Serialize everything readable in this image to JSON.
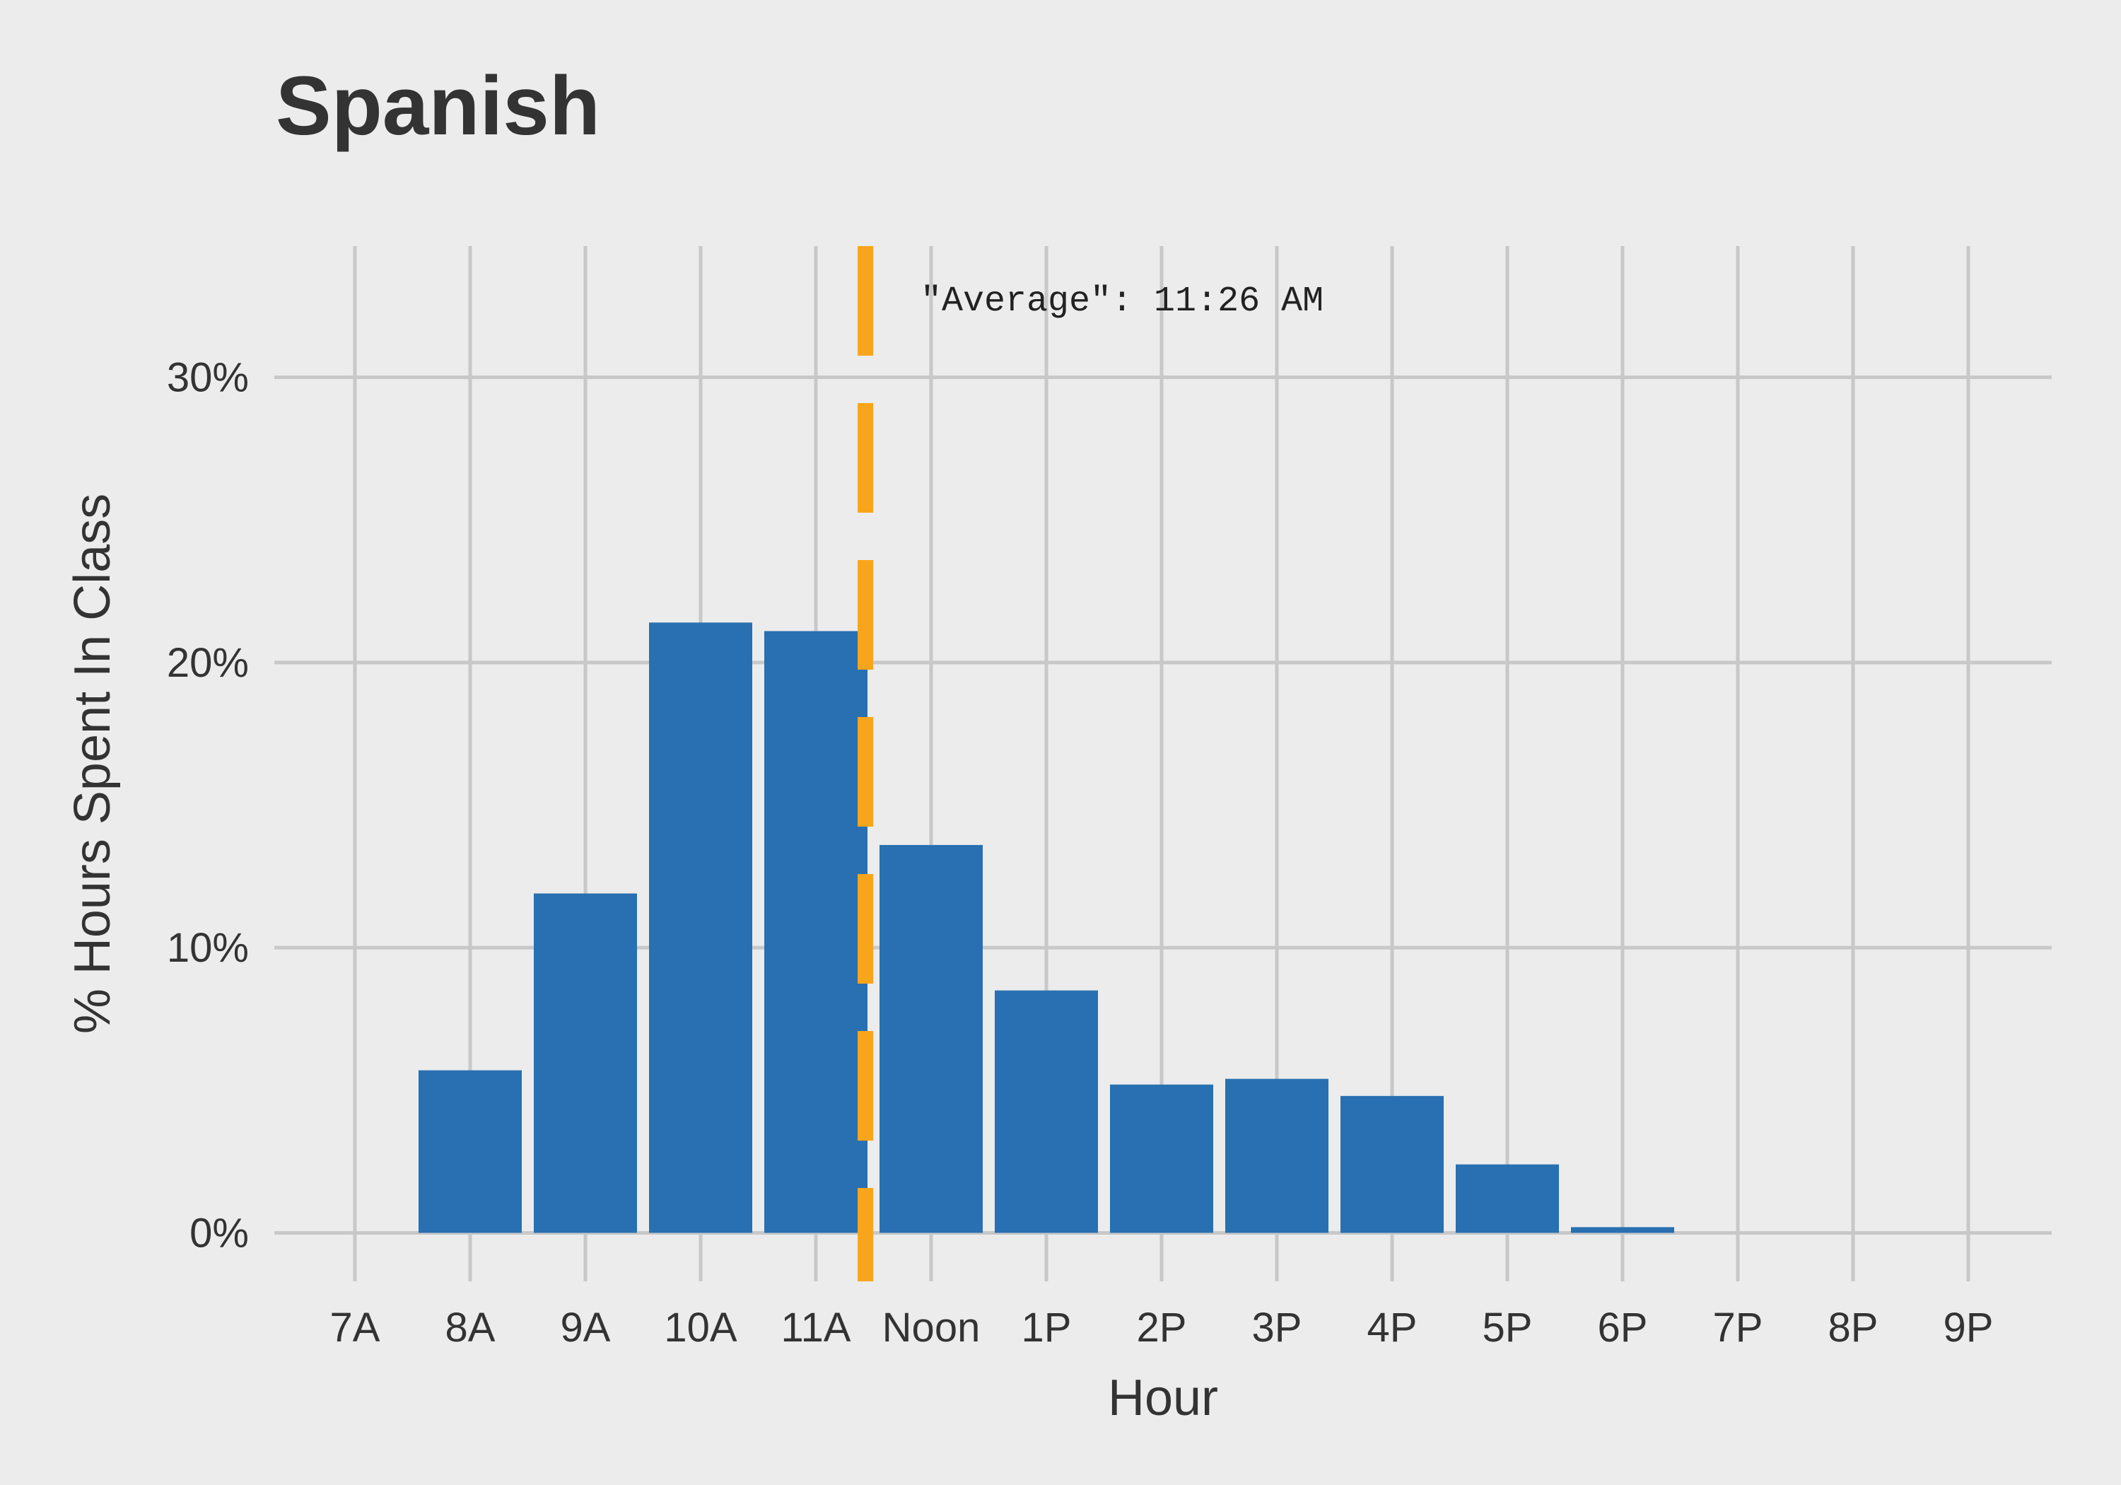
{
  "chart_data": {
    "type": "bar",
    "title": "Spanish",
    "xlabel": "Hour",
    "ylabel": "% Hours Spent In Class",
    "categories": [
      "7A",
      "8A",
      "9A",
      "10A",
      "11A",
      "Noon",
      "1P",
      "2P",
      "3P",
      "4P",
      "5P",
      "6P",
      "7P",
      "8P",
      "9P"
    ],
    "values": [
      0,
      5.7,
      11.9,
      21.4,
      21.1,
      13.6,
      8.5,
      5.2,
      5.4,
      4.8,
      2.4,
      0.2,
      0,
      0,
      0
    ],
    "ylim": [
      -1.7,
      34.6
    ],
    "y_ticks": [
      0,
      10,
      20,
      30
    ],
    "y_tick_labels": [
      "0%",
      "10%",
      "20%",
      "30%"
    ],
    "grid": true,
    "legend": "none",
    "bar_color": "#2870b1",
    "average": {
      "value_hours": 11.43,
      "label": "\"Average\": 11:26 AM",
      "color": "#f9a51b",
      "style": "dashed"
    }
  }
}
